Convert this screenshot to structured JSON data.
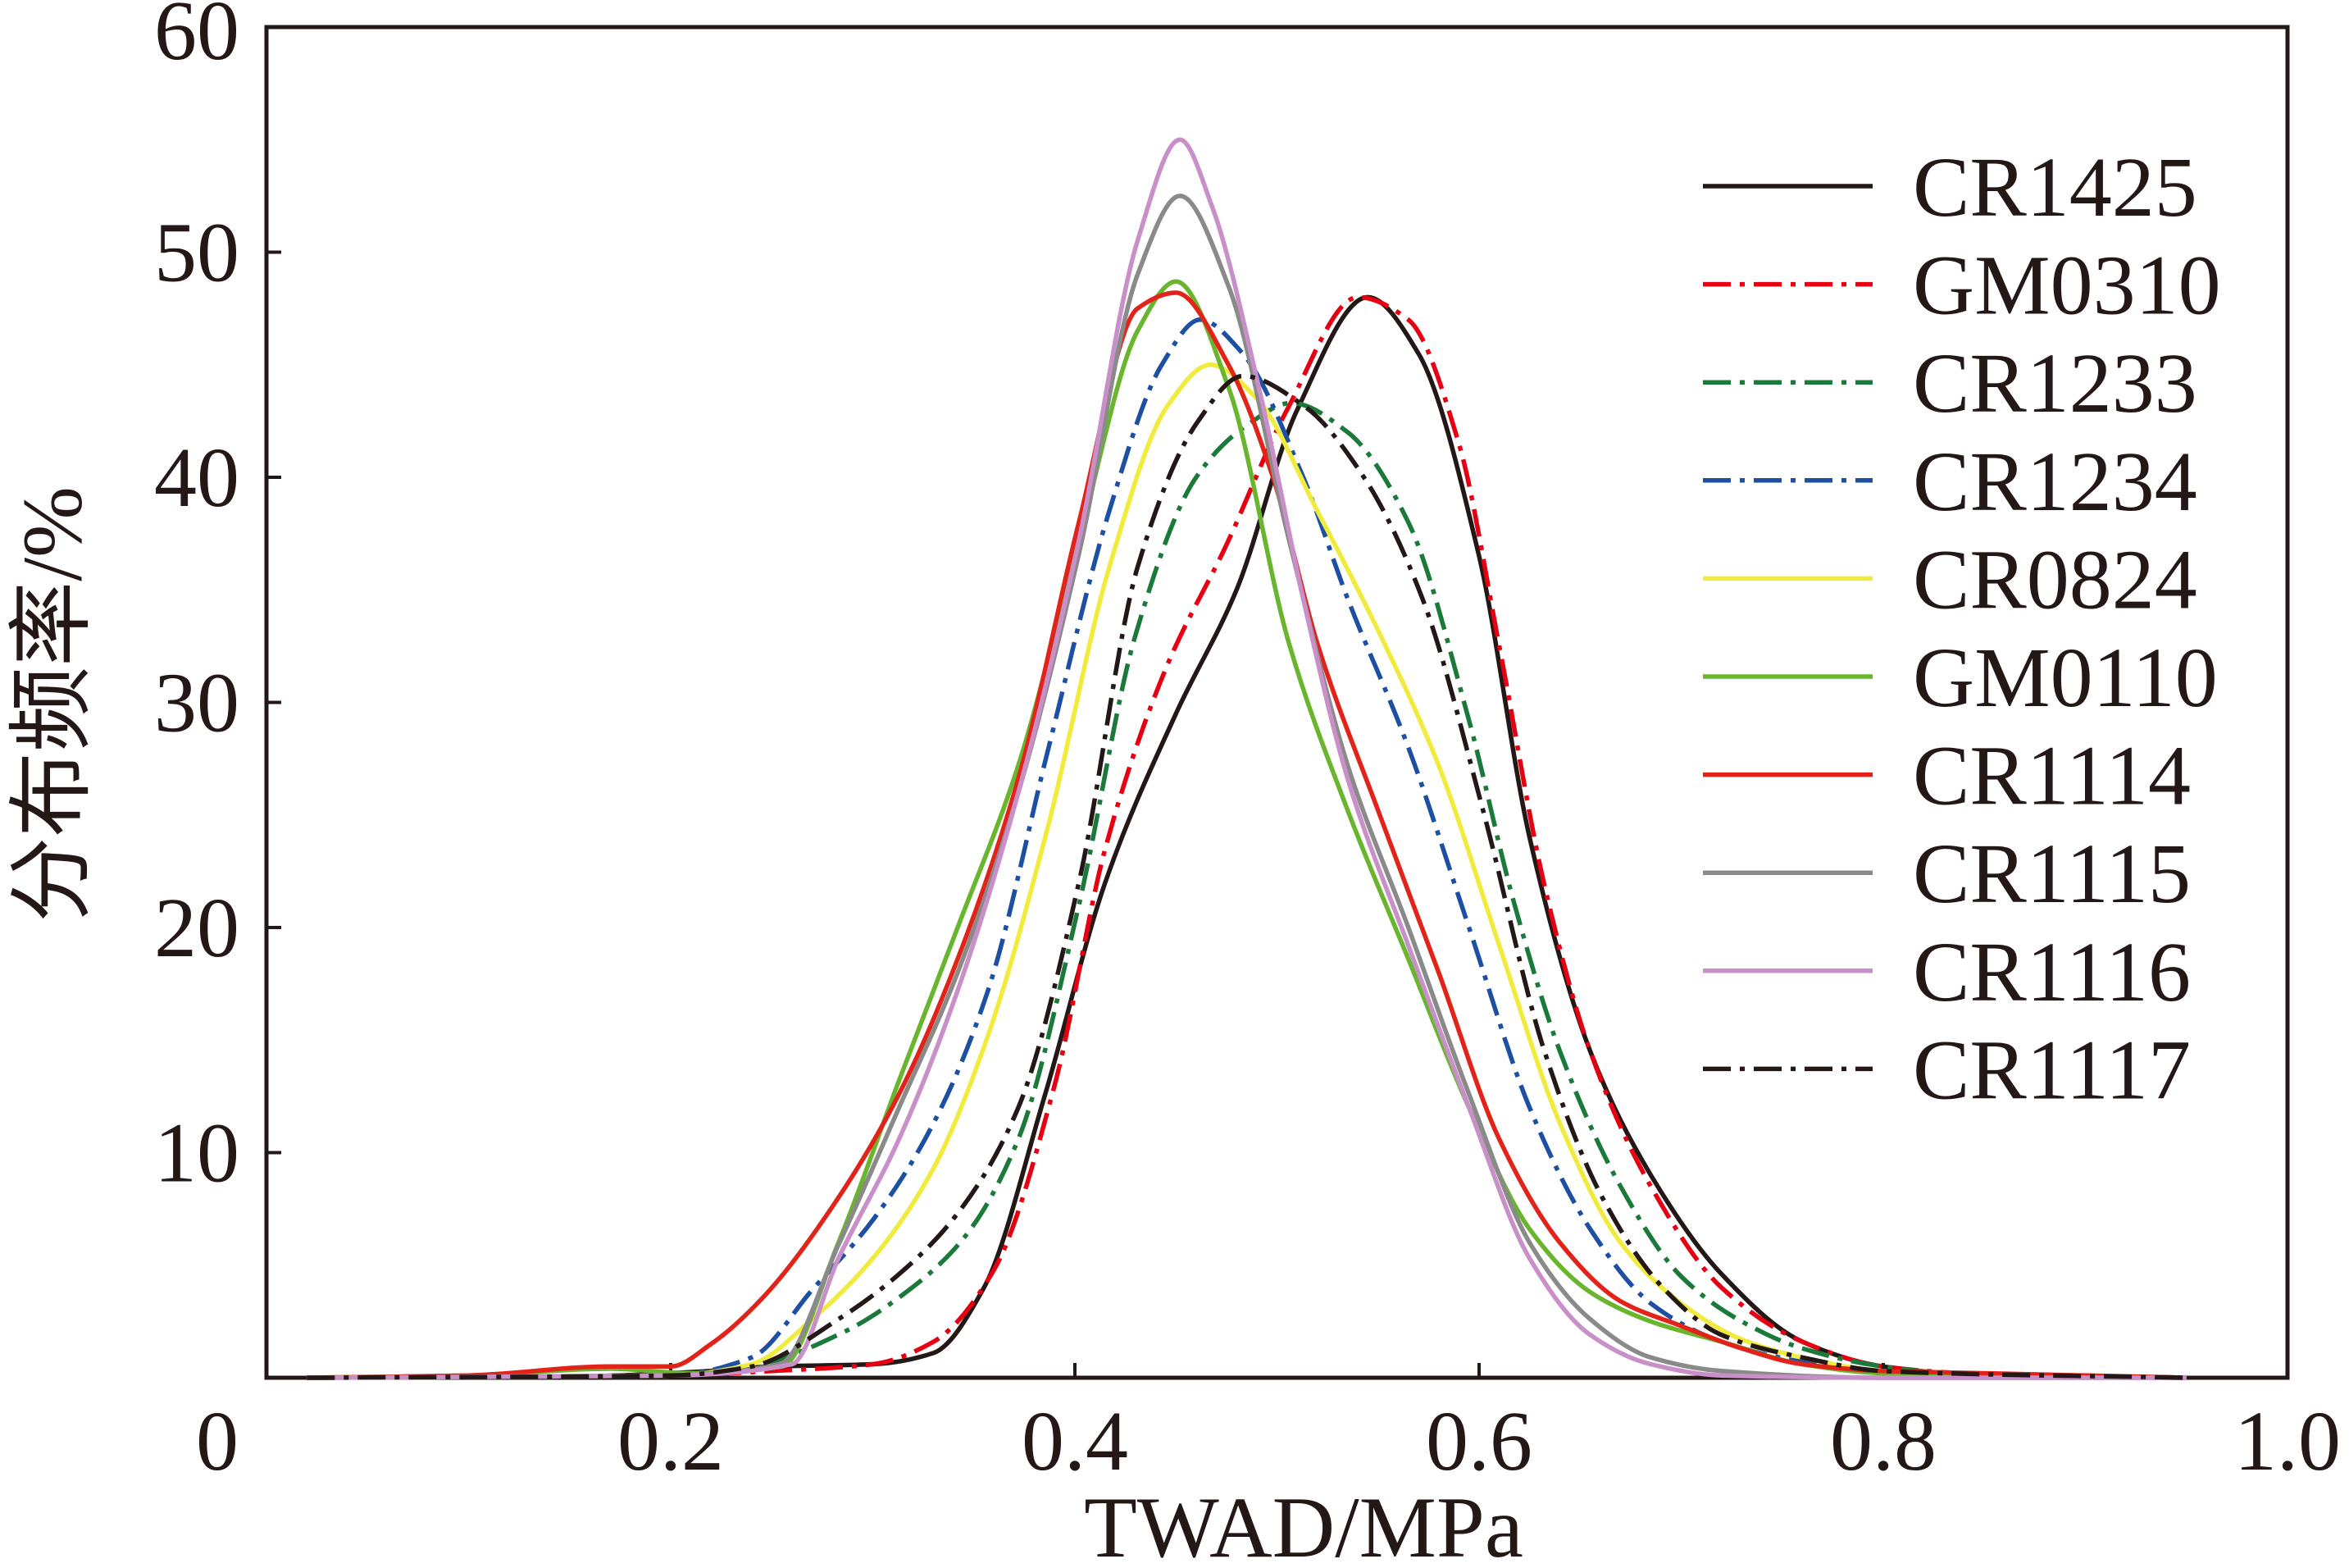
{
  "chart_data": {
    "type": "line",
    "xlabel": "TWAD/MPa",
    "ylabel": "分布频率/%",
    "xlim": [
      0,
      1.0
    ],
    "ylim": [
      0,
      60
    ],
    "x_ticks": [
      "0",
      "0.2",
      "0.4",
      "0.6",
      "0.8",
      "1.0"
    ],
    "y_ticks": [
      "10",
      "20",
      "30",
      "40",
      "50",
      "60"
    ],
    "grid": false,
    "legend_position": "top-right",
    "series": [
      {
        "name": "CR1425",
        "color": "#231815",
        "line_style": "solid",
        "points": [
          [
            0.02,
            0
          ],
          [
            0.15,
            0.05
          ],
          [
            0.22,
            0.3
          ],
          [
            0.25,
            0.5
          ],
          [
            0.3,
            0.6
          ],
          [
            0.33,
            1.1
          ],
          [
            0.355,
            4
          ],
          [
            0.385,
            12.5
          ],
          [
            0.415,
            22
          ],
          [
            0.45,
            29.5
          ],
          [
            0.48,
            35
          ],
          [
            0.51,
            43
          ],
          [
            0.545,
            48
          ],
          [
            0.57,
            45.5
          ],
          [
            0.6,
            36.5
          ],
          [
            0.625,
            24
          ],
          [
            0.655,
            14.5
          ],
          [
            0.685,
            9
          ],
          [
            0.72,
            4.6
          ],
          [
            0.76,
            1.6
          ],
          [
            0.8,
            0.5
          ],
          [
            0.85,
            0.1
          ],
          [
            0.95,
            0
          ]
        ]
      },
      {
        "name": "GM0310",
        "color": "#e60012",
        "line_style": "dash-dot",
        "points": [
          [
            0.02,
            0
          ],
          [
            0.2,
            0.1
          ],
          [
            0.25,
            0.3
          ],
          [
            0.3,
            0.6
          ],
          [
            0.33,
            1.6
          ],
          [
            0.36,
            4.8
          ],
          [
            0.39,
            13
          ],
          [
            0.415,
            23.5
          ],
          [
            0.445,
            31.5
          ],
          [
            0.475,
            37
          ],
          [
            0.505,
            43
          ],
          [
            0.54,
            48
          ],
          [
            0.565,
            47
          ],
          [
            0.59,
            41.5
          ],
          [
            0.61,
            32.5
          ],
          [
            0.632,
            22
          ],
          [
            0.655,
            14.5
          ],
          [
            0.685,
            8.5
          ],
          [
            0.72,
            4
          ],
          [
            0.76,
            1.6
          ],
          [
            0.8,
            0.5
          ],
          [
            0.84,
            0.2
          ],
          [
            0.95,
            0
          ]
        ]
      },
      {
        "name": "CR1233",
        "color": "#1b7a3a",
        "line_style": "dash-dot",
        "points": [
          [
            0.02,
            0
          ],
          [
            0.2,
            0.1
          ],
          [
            0.24,
            0.5
          ],
          [
            0.285,
            2
          ],
          [
            0.315,
            3.7
          ],
          [
            0.345,
            6.2
          ],
          [
            0.372,
            10.6
          ],
          [
            0.402,
            21
          ],
          [
            0.43,
            33
          ],
          [
            0.46,
            40
          ],
          [
            0.485,
            42.3
          ],
          [
            0.507,
            43.3
          ],
          [
            0.535,
            42
          ],
          [
            0.565,
            38
          ],
          [
            0.595,
            29.2
          ],
          [
            0.617,
            21.2
          ],
          [
            0.64,
            14.5
          ],
          [
            0.67,
            8.5
          ],
          [
            0.7,
            4.5
          ],
          [
            0.73,
            2.5
          ],
          [
            0.76,
            1.3
          ],
          [
            0.8,
            0.5
          ],
          [
            0.85,
            0.1
          ],
          [
            0.95,
            0
          ]
        ]
      },
      {
        "name": "CR1234",
        "color": "#1d4fa3",
        "line_style": "dash-dot",
        "points": [
          [
            0.02,
            0
          ],
          [
            0.2,
            0.1
          ],
          [
            0.24,
            0.9
          ],
          [
            0.27,
            3.9
          ],
          [
            0.3,
            7
          ],
          [
            0.33,
            11.3
          ],
          [
            0.357,
            17.2
          ],
          [
            0.387,
            28
          ],
          [
            0.417,
            38.5
          ],
          [
            0.443,
            45
          ],
          [
            0.462,
            47
          ],
          [
            0.483,
            45.5
          ],
          [
            0.513,
            40
          ],
          [
            0.535,
            34.6
          ],
          [
            0.565,
            28
          ],
          [
            0.595,
            20
          ],
          [
            0.625,
            12
          ],
          [
            0.655,
            6.6
          ],
          [
            0.685,
            3.3
          ],
          [
            0.72,
            1.6
          ],
          [
            0.76,
            0.7
          ],
          [
            0.8,
            0.2
          ],
          [
            0.95,
            0
          ]
        ]
      },
      {
        "name": "CR0824",
        "color": "#f0eb3c",
        "line_style": "solid",
        "points": [
          [
            0.02,
            0
          ],
          [
            0.2,
            0.1
          ],
          [
            0.24,
            0.6
          ],
          [
            0.27,
            2.6
          ],
          [
            0.3,
            5.3
          ],
          [
            0.33,
            9.3
          ],
          [
            0.357,
            15.2
          ],
          [
            0.387,
            24.6
          ],
          [
            0.417,
            36
          ],
          [
            0.446,
            43.2
          ],
          [
            0.467,
            45
          ],
          [
            0.49,
            43.5
          ],
          [
            0.52,
            38.5
          ],
          [
            0.55,
            33.2
          ],
          [
            0.58,
            27.2
          ],
          [
            0.61,
            19.2
          ],
          [
            0.64,
            11.3
          ],
          [
            0.67,
            6
          ],
          [
            0.7,
            3.3
          ],
          [
            0.73,
            1.7
          ],
          [
            0.76,
            0.9
          ],
          [
            0.8,
            0.3
          ],
          [
            0.95,
            0
          ]
        ]
      },
      {
        "name": "GM0110",
        "color": "#6ab52e",
        "line_style": "solid",
        "points": [
          [
            0.02,
            0
          ],
          [
            0.1,
            0.1
          ],
          [
            0.17,
            0.4
          ],
          [
            0.21,
            0.2
          ],
          [
            0.255,
            0.5
          ],
          [
            0.283,
            6
          ],
          [
            0.313,
            13.2
          ],
          [
            0.342,
            20
          ],
          [
            0.372,
            27.2
          ],
          [
            0.402,
            37.2
          ],
          [
            0.431,
            46.5
          ],
          [
            0.45,
            48.7
          ],
          [
            0.476,
            44
          ],
          [
            0.506,
            32.6
          ],
          [
            0.535,
            25.2
          ],
          [
            0.565,
            18.6
          ],
          [
            0.595,
            12
          ],
          [
            0.625,
            6.6
          ],
          [
            0.655,
            3.8
          ],
          [
            0.685,
            2.5
          ],
          [
            0.72,
            1.6
          ],
          [
            0.76,
            0.6
          ],
          [
            0.8,
            0.2
          ],
          [
            0.95,
            0
          ]
        ]
      },
      {
        "name": "CR1114",
        "color": "#e2231a",
        "line_style": "solid",
        "points": [
          [
            0.02,
            0
          ],
          [
            0.1,
            0.1
          ],
          [
            0.17,
            0.5
          ],
          [
            0.2,
            0.5
          ],
          [
            0.22,
            1.5
          ],
          [
            0.245,
            3.5
          ],
          [
            0.283,
            8
          ],
          [
            0.313,
            12.6
          ],
          [
            0.342,
            18.6
          ],
          [
            0.372,
            26.6
          ],
          [
            0.402,
            38
          ],
          [
            0.431,
            47.5
          ],
          [
            0.45,
            48.2
          ],
          [
            0.476,
            45
          ],
          [
            0.498,
            40
          ],
          [
            0.52,
            32.6
          ],
          [
            0.55,
            25.2
          ],
          [
            0.58,
            18
          ],
          [
            0.61,
            10.6
          ],
          [
            0.64,
            6
          ],
          [
            0.67,
            3.4
          ],
          [
            0.7,
            2.3
          ],
          [
            0.73,
            1.3
          ],
          [
            0.76,
            0.6
          ],
          [
            0.8,
            0.3
          ],
          [
            0.85,
            0.2
          ],
          [
            0.95,
            0
          ]
        ]
      },
      {
        "name": "CR1115",
        "color": "#8a8a8a",
        "line_style": "solid",
        "points": [
          [
            0.02,
            0
          ],
          [
            0.2,
            0.1
          ],
          [
            0.254,
            0.6
          ],
          [
            0.283,
            5.9
          ],
          [
            0.313,
            12
          ],
          [
            0.342,
            18
          ],
          [
            0.372,
            26
          ],
          [
            0.402,
            36.6
          ],
          [
            0.431,
            49
          ],
          [
            0.452,
            52.5
          ],
          [
            0.476,
            48.5
          ],
          [
            0.506,
            37.2
          ],
          [
            0.535,
            27.2
          ],
          [
            0.565,
            20
          ],
          [
            0.595,
            12.6
          ],
          [
            0.625,
            6
          ],
          [
            0.655,
            2.6
          ],
          [
            0.685,
            0.9
          ],
          [
            0.72,
            0.3
          ],
          [
            0.8,
            0
          ],
          [
            0.95,
            0
          ]
        ]
      },
      {
        "name": "CR1116",
        "color": "#c88fc8",
        "line_style": "solid",
        "points": [
          [
            0.02,
            0
          ],
          [
            0.2,
            0.1
          ],
          [
            0.26,
            0.6
          ],
          [
            0.283,
            5.3
          ],
          [
            0.313,
            10.6
          ],
          [
            0.342,
            17.2
          ],
          [
            0.372,
            26
          ],
          [
            0.402,
            37.2
          ],
          [
            0.431,
            50.5
          ],
          [
            0.452,
            55
          ],
          [
            0.468,
            52
          ],
          [
            0.491,
            44
          ],
          [
            0.513,
            34.6
          ],
          [
            0.535,
            26.6
          ],
          [
            0.565,
            19.2
          ],
          [
            0.595,
            12
          ],
          [
            0.625,
            5.3
          ],
          [
            0.655,
            1.9
          ],
          [
            0.685,
            0.6
          ],
          [
            0.72,
            0.1
          ],
          [
            0.8,
            0
          ],
          [
            0.95,
            0
          ]
        ]
      },
      {
        "name": "CR1117",
        "color": "#231815",
        "line_style": "dash-dot",
        "points": [
          [
            0.02,
            0
          ],
          [
            0.2,
            0.1
          ],
          [
            0.24,
            0.5
          ],
          [
            0.283,
            2.6
          ],
          [
            0.313,
            4.6
          ],
          [
            0.342,
            7.3
          ],
          [
            0.372,
            12
          ],
          [
            0.402,
            22
          ],
          [
            0.431,
            36
          ],
          [
            0.461,
            42.5
          ],
          [
            0.483,
            44.5
          ],
          [
            0.513,
            43.2
          ],
          [
            0.543,
            40
          ],
          [
            0.572,
            34.6
          ],
          [
            0.602,
            25.2
          ],
          [
            0.632,
            14.6
          ],
          [
            0.661,
            8
          ],
          [
            0.691,
            4
          ],
          [
            0.72,
            1.9
          ],
          [
            0.76,
            0.9
          ],
          [
            0.8,
            0.3
          ],
          [
            0.95,
            0
          ]
        ]
      }
    ]
  }
}
